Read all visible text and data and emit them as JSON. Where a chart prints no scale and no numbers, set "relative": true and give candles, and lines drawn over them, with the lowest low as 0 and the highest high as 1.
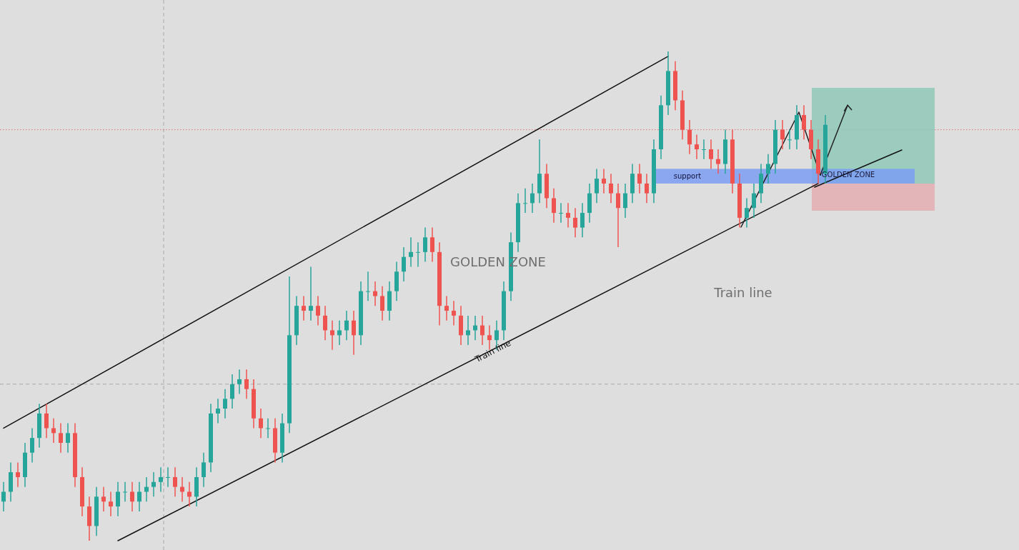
{
  "chart_data": {
    "type": "candlestick",
    "relative": true,
    "categories": [
      null,
      null,
      null,
      null,
      null,
      null,
      null,
      null,
      null,
      null,
      null,
      null,
      null,
      null,
      null,
      null,
      null,
      null,
      null,
      null,
      null,
      null,
      null,
      null,
      null,
      null,
      null,
      null,
      null,
      null,
      null,
      null,
      null,
      null,
      null,
      null,
      null,
      null,
      null,
      null,
      null,
      null,
      null,
      null,
      null,
      null,
      null,
      null,
      null,
      null,
      null,
      null,
      null,
      null,
      null,
      null,
      null,
      null,
      null,
      null,
      null,
      null,
      null,
      null,
      null,
      null,
      null,
      null,
      null,
      null,
      null,
      null,
      null,
      null,
      null,
      null,
      null,
      null,
      null,
      null,
      null,
      null,
      null,
      null,
      null,
      null,
      null,
      null,
      null,
      null,
      null,
      null,
      null,
      null,
      null,
      null,
      null,
      null,
      null,
      null,
      null,
      null,
      null,
      null,
      null,
      null,
      null,
      null,
      null,
      null,
      null,
      null,
      null,
      null,
      null,
      null
    ],
    "colors": [
      "#26a69a",
      "#26a69a",
      "#ef5350",
      "#26a69a",
      "#26a69a",
      "#26a69a",
      "#ef5350",
      "#ef5350",
      "#ef5350",
      "#26a69a",
      "#ef5350",
      "#ef5350",
      "#ef5350",
      "#26a69a",
      "#ef5350",
      "#ef5350",
      "#26a69a",
      "#26a69a",
      "#ef5350",
      "#26a69a",
      "#26a69a",
      "#26a69a",
      "#26a69a",
      "#26a69a",
      "#ef5350",
      "#ef5350",
      "#ef5350",
      "#26a69a",
      "#26a69a",
      "#26a69a",
      "#26a69a",
      "#26a69a",
      "#26a69a",
      "#26a69a",
      "#ef5350",
      "#ef5350",
      "#ef5350",
      "#26a69a",
      "#ef5350",
      "#26a69a",
      "#26a69a",
      "#26a69a",
      "#ef5350",
      "#26a69a",
      "#ef5350",
      "#ef5350",
      "#ef5350",
      "#26a69a",
      "#26a69a",
      "#ef5350",
      "#26a69a",
      "#26a69a",
      "#ef5350",
      "#ef5350",
      "#26a69a",
      "#26a69a",
      "#26a69a",
      "#26a69a",
      "#26a69a",
      "#26a69a",
      "#ef5350",
      "#ef5350",
      "#ef5350",
      "#ef5350",
      "#ef5350",
      "#26a69a",
      "#26a69a",
      "#ef5350",
      "#ef5350",
      "#26a69a",
      "#26a69a",
      "#26a69a",
      "#26a69a",
      "#26a69a",
      "#26a69a",
      "#26a69a",
      "#ef5350",
      "#ef5350",
      "#26a69a",
      "#ef5350",
      "#ef5350",
      "#26a69a",
      "#26a69a",
      "#26a69a",
      "#ef5350",
      "#ef5350",
      "#ef5350",
      "#26a69a",
      "#26a69a",
      "#ef5350",
      "#ef5350",
      "#26a69a",
      "#26a69a",
      "#26a69a",
      "#ef5350",
      "#ef5350",
      "#ef5350",
      "#ef5350",
      "#26a69a",
      "#ef5350",
      "#ef5350",
      "#26a69a",
      "#ef5350",
      "#ef5350",
      "#26a69a",
      "#26a69a",
      "#26a69a",
      "#26a69a",
      "#26a69a",
      "#ef5350",
      "#26a69a",
      "#26a69a",
      "#ef5350",
      "#ef5350",
      "#ef5350",
      "#26a69a"
    ],
    "ohlc": [
      [
        0.08,
        0.12,
        0.06,
        0.1
      ],
      [
        0.1,
        0.16,
        0.08,
        0.14
      ],
      [
        0.14,
        0.16,
        0.11,
        0.13
      ],
      [
        0.13,
        0.2,
        0.11,
        0.18
      ],
      [
        0.18,
        0.23,
        0.16,
        0.21
      ],
      [
        0.21,
        0.28,
        0.19,
        0.26
      ],
      [
        0.26,
        0.28,
        0.21,
        0.23
      ],
      [
        0.23,
        0.25,
        0.2,
        0.22
      ],
      [
        0.22,
        0.24,
        0.18,
        0.2
      ],
      [
        0.2,
        0.24,
        0.18,
        0.22
      ],
      [
        0.22,
        0.24,
        0.11,
        0.13
      ],
      [
        0.13,
        0.15,
        0.05,
        0.07
      ],
      [
        0.07,
        0.09,
        0,
        0.03
      ],
      [
        0.03,
        0.11,
        0.01,
        0.09
      ],
      [
        0.09,
        0.11,
        0.06,
        0.08
      ],
      [
        0.08,
        0.1,
        0.05,
        0.07
      ],
      [
        0.07,
        0.12,
        0.05,
        0.1
      ],
      [
        0.1,
        0.12,
        0.08,
        0.1
      ],
      [
        0.1,
        0.12,
        0.06,
        0.08
      ],
      [
        0.08,
        0.12,
        0.06,
        0.1
      ],
      [
        0.1,
        0.13,
        0.08,
        0.11
      ],
      [
        0.11,
        0.14,
        0.09,
        0.12
      ],
      [
        0.12,
        0.15,
        0.1,
        0.13
      ],
      [
        0.13,
        0.15,
        0.11,
        0.13
      ],
      [
        0.13,
        0.15,
        0.09,
        0.11
      ],
      [
        0.11,
        0.13,
        0.08,
        0.1
      ],
      [
        0.1,
        0.12,
        0.07,
        0.09
      ],
      [
        0.09,
        0.15,
        0.07,
        0.13
      ],
      [
        0.13,
        0.18,
        0.11,
        0.16
      ],
      [
        0.16,
        0.28,
        0.14,
        0.26
      ],
      [
        0.26,
        0.29,
        0.24,
        0.27
      ],
      [
        0.27,
        0.31,
        0.25,
        0.29
      ],
      [
        0.29,
        0.34,
        0.27,
        0.32
      ],
      [
        0.32,
        0.35,
        0.3,
        0.33
      ],
      [
        0.33,
        0.35,
        0.29,
        0.31
      ],
      [
        0.31,
        0.33,
        0.23,
        0.25
      ],
      [
        0.25,
        0.27,
        0.21,
        0.23
      ],
      [
        0.23,
        0.25,
        0.21,
        0.23
      ],
      [
        0.23,
        0.25,
        0.16,
        0.18
      ],
      [
        0.18,
        0.26,
        0.16,
        0.24
      ],
      [
        0.24,
        0.54,
        0.22,
        0.42
      ],
      [
        0.42,
        0.5,
        0.4,
        0.48
      ],
      [
        0.48,
        0.5,
        0.45,
        0.47
      ],
      [
        0.47,
        0.56,
        0.45,
        0.48
      ],
      [
        0.48,
        0.5,
        0.44,
        0.46
      ],
      [
        0.46,
        0.48,
        0.41,
        0.43
      ],
      [
        0.43,
        0.45,
        0.39,
        0.42
      ],
      [
        0.42,
        0.45,
        0.4,
        0.43
      ],
      [
        0.43,
        0.47,
        0.41,
        0.45
      ],
      [
        0.45,
        0.47,
        0.38,
        0.42
      ],
      [
        0.42,
        0.53,
        0.4,
        0.51
      ],
      [
        0.51,
        0.55,
        0.49,
        0.51
      ],
      [
        0.51,
        0.53,
        0.48,
        0.5
      ],
      [
        0.5,
        0.52,
        0.45,
        0.47
      ],
      [
        0.47,
        0.53,
        0.45,
        0.51
      ],
      [
        0.51,
        0.57,
        0.49,
        0.55
      ],
      [
        0.55,
        0.6,
        0.53,
        0.58
      ],
      [
        0.58,
        0.62,
        0.56,
        0.59
      ],
      [
        0.59,
        0.61,
        0.56,
        0.59
      ],
      [
        0.59,
        0.64,
        0.57,
        0.62
      ],
      [
        0.62,
        0.64,
        0.57,
        0.59
      ],
      [
        0.59,
        0.61,
        0.44,
        0.48
      ],
      [
        0.48,
        0.5,
        0.45,
        0.47
      ],
      [
        0.47,
        0.49,
        0.44,
        0.46
      ],
      [
        0.46,
        0.48,
        0.4,
        0.42
      ],
      [
        0.42,
        0.46,
        0.4,
        0.43
      ],
      [
        0.43,
        0.46,
        0.41,
        0.44
      ],
      [
        0.44,
        0.46,
        0.4,
        0.42
      ],
      [
        0.42,
        0.44,
        0.39,
        0.41
      ],
      [
        0.41,
        0.45,
        0.39,
        0.43
      ],
      [
        0.43,
        0.53,
        0.41,
        0.51
      ],
      [
        0.51,
        0.63,
        0.49,
        0.61
      ],
      [
        0.61,
        0.71,
        0.59,
        0.69
      ],
      [
        0.69,
        0.72,
        0.67,
        0.69
      ],
      [
        0.69,
        0.73,
        0.67,
        0.71
      ],
      [
        0.71,
        0.82,
        0.69,
        0.75
      ],
      [
        0.75,
        0.77,
        0.68,
        0.7
      ],
      [
        0.7,
        0.72,
        0.65,
        0.67
      ],
      [
        0.67,
        0.69,
        0.65,
        0.67
      ],
      [
        0.67,
        0.69,
        0.64,
        0.66
      ],
      [
        0.66,
        0.68,
        0.62,
        0.64
      ],
      [
        0.64,
        0.69,
        0.62,
        0.67
      ],
      [
        0.67,
        0.73,
        0.65,
        0.71
      ],
      [
        0.71,
        0.76,
        0.69,
        0.74
      ],
      [
        0.74,
        0.76,
        0.71,
        0.73
      ],
      [
        0.73,
        0.75,
        0.69,
        0.71
      ],
      [
        0.71,
        0.73,
        0.6,
        0.68
      ],
      [
        0.68,
        0.73,
        0.66,
        0.71
      ],
      [
        0.71,
        0.77,
        0.69,
        0.75
      ],
      [
        0.75,
        0.77,
        0.71,
        0.73
      ],
      [
        0.73,
        0.75,
        0.69,
        0.71
      ],
      [
        0.71,
        0.82,
        0.69,
        0.8
      ],
      [
        0.8,
        0.91,
        0.78,
        0.89
      ],
      [
        0.89,
        1,
        0.87,
        0.96
      ],
      [
        0.96,
        0.98,
        0.88,
        0.9
      ],
      [
        0.9,
        0.92,
        0.82,
        0.84
      ],
      [
        0.84,
        0.86,
        0.79,
        0.81
      ],
      [
        0.81,
        0.83,
        0.78,
        0.8
      ],
      [
        0.8,
        0.82,
        0.78,
        0.8
      ],
      [
        0.8,
        0.82,
        0.76,
        0.78
      ],
      [
        0.78,
        0.8,
        0.75,
        0.77
      ],
      [
        0.77,
        0.84,
        0.75,
        0.82
      ],
      [
        0.82,
        0.84,
        0.71,
        0.73
      ],
      [
        0.73,
        0.75,
        0.64,
        0.66
      ],
      [
        0.66,
        0.7,
        0.64,
        0.68
      ],
      [
        0.68,
        0.73,
        0.66,
        0.71
      ],
      [
        0.71,
        0.77,
        0.69,
        0.75
      ],
      [
        0.75,
        0.79,
        0.73,
        0.77
      ],
      [
        0.77,
        0.86,
        0.75,
        0.84
      ],
      [
        0.84,
        0.86,
        0.8,
        0.82
      ],
      [
        0.82,
        0.84,
        0.8,
        0.82
      ],
      [
        0.82,
        0.89,
        0.8,
        0.87
      ],
      [
        0.87,
        0.89,
        0.82,
        0.84
      ],
      [
        0.84,
        0.86,
        0.78,
        0.8
      ],
      [
        0.8,
        0.82,
        0.73,
        0.75
      ],
      [
        0.75,
        0.87,
        0.73,
        0.85
      ]
    ],
    "series": [
      {
        "type": "line",
        "color": "#111111",
        "values": [
          0.23,
          null,
          null,
          null,
          null,
          null,
          null,
          null,
          null,
          null,
          null,
          null,
          null,
          null,
          null,
          null,
          null,
          null,
          null,
          null,
          null,
          null,
          null,
          null,
          null,
          null,
          null,
          null,
          null,
          null,
          null,
          null,
          null,
          null,
          null,
          null,
          null,
          null,
          null,
          null,
          null,
          null,
          null,
          null,
          null,
          null,
          null,
          null,
          null,
          null,
          null,
          null,
          null,
          null,
          null,
          null,
          null,
          null,
          null,
          null,
          null,
          null,
          null,
          null,
          null,
          null,
          null,
          null,
          null,
          null,
          null,
          null,
          null,
          null,
          null,
          null,
          null,
          null,
          null,
          null,
          null,
          null,
          null,
          null,
          null,
          null,
          null,
          null,
          null,
          null,
          null,
          null,
          null,
          0.99,
          null,
          null,
          null,
          null,
          null,
          null,
          null,
          null,
          null,
          null,
          null,
          null,
          null,
          null,
          null,
          null,
          null,
          null,
          null,
          null,
          null,
          null
        ]
      },
      {
        "type": "line",
        "color": "#111111",
        "values": [
          null,
          null,
          null,
          null,
          null,
          null,
          null,
          null,
          null,
          null,
          null,
          null,
          null,
          null,
          null,
          null,
          0,
          null,
          null,
          null,
          null,
          null,
          null,
          null,
          null,
          null,
          null,
          null,
          null,
          null,
          null,
          null,
          null,
          null,
          null,
          null,
          null,
          null,
          null,
          null,
          null,
          null,
          null,
          null,
          null,
          null,
          null,
          null,
          null,
          null,
          null,
          null,
          null,
          null,
          null,
          null,
          null,
          null,
          null,
          null,
          null,
          null,
          null,
          null,
          null,
          null,
          null,
          null,
          null,
          null,
          null,
          null,
          null,
          null,
          null,
          null,
          null,
          null,
          null,
          null,
          null,
          null,
          null,
          null,
          null,
          null,
          null,
          null,
          null,
          null,
          null,
          null,
          null,
          null,
          null,
          null,
          null,
          null,
          null,
          null,
          null,
          null,
          null,
          null,
          null,
          null,
          null,
          null,
          null,
          null,
          null,
          null,
          null,
          null,
          0.73,
          null
        ]
      }
    ],
    "bands": [
      {
        "axis": "y",
        "from": 0.73,
        "to": 0.76,
        "label": "support",
        "color": "#7d9ef2"
      }
    ],
    "ref_lines": [
      {
        "axis": "y",
        "value": 0.84,
        "color": "#e57373",
        "line_style": "dotted"
      },
      {
        "axis": "y",
        "value": 0.32,
        "color": "#a8a8a8",
        "line_style": "dashed"
      }
    ],
    "annotations": [
      "GOLDEN ZONE",
      "Train line",
      "Train line",
      "GOLDEN ZONE"
    ]
  }
}
